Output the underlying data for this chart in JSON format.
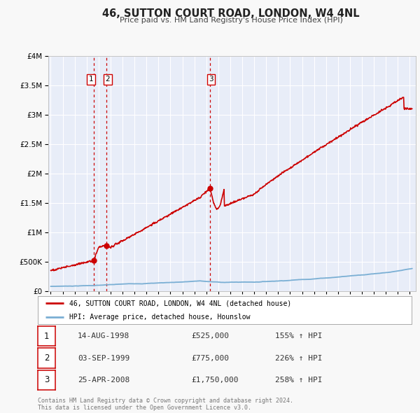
{
  "title": "46, SUTTON COURT ROAD, LONDON, W4 4NL",
  "subtitle": "Price paid vs. HM Land Registry's House Price Index (HPI)",
  "bg_color": "#f8f8f8",
  "plot_bg_color": "#e8edf8",
  "grid_color": "#ffffff",
  "red_color": "#cc0000",
  "blue_color": "#7aafd4",
  "sale_dates_num": [
    1998.617,
    1999.671,
    2008.319
  ],
  "sale_prices": [
    525000,
    775000,
    1750000
  ],
  "sale_labels": [
    "1",
    "2",
    "3"
  ],
  "legend_red": "46, SUTTON COURT ROAD, LONDON, W4 4NL (detached house)",
  "legend_blue": "HPI: Average price, detached house, Hounslow",
  "table_rows": [
    {
      "label": "1",
      "date": "14-AUG-1998",
      "price": "£525,000",
      "pct": "155% ↑ HPI"
    },
    {
      "label": "2",
      "date": "03-SEP-1999",
      "price": "£775,000",
      "pct": "226% ↑ HPI"
    },
    {
      "label": "3",
      "date": "25-APR-2008",
      "price": "£1,750,000",
      "pct": "258% ↑ HPI"
    }
  ],
  "footer": "Contains HM Land Registry data © Crown copyright and database right 2024.\nThis data is licensed under the Open Government Licence v3.0.",
  "ylim": [
    0,
    4000000
  ],
  "xlim_start": 1994.8,
  "xlim_end": 2025.5
}
